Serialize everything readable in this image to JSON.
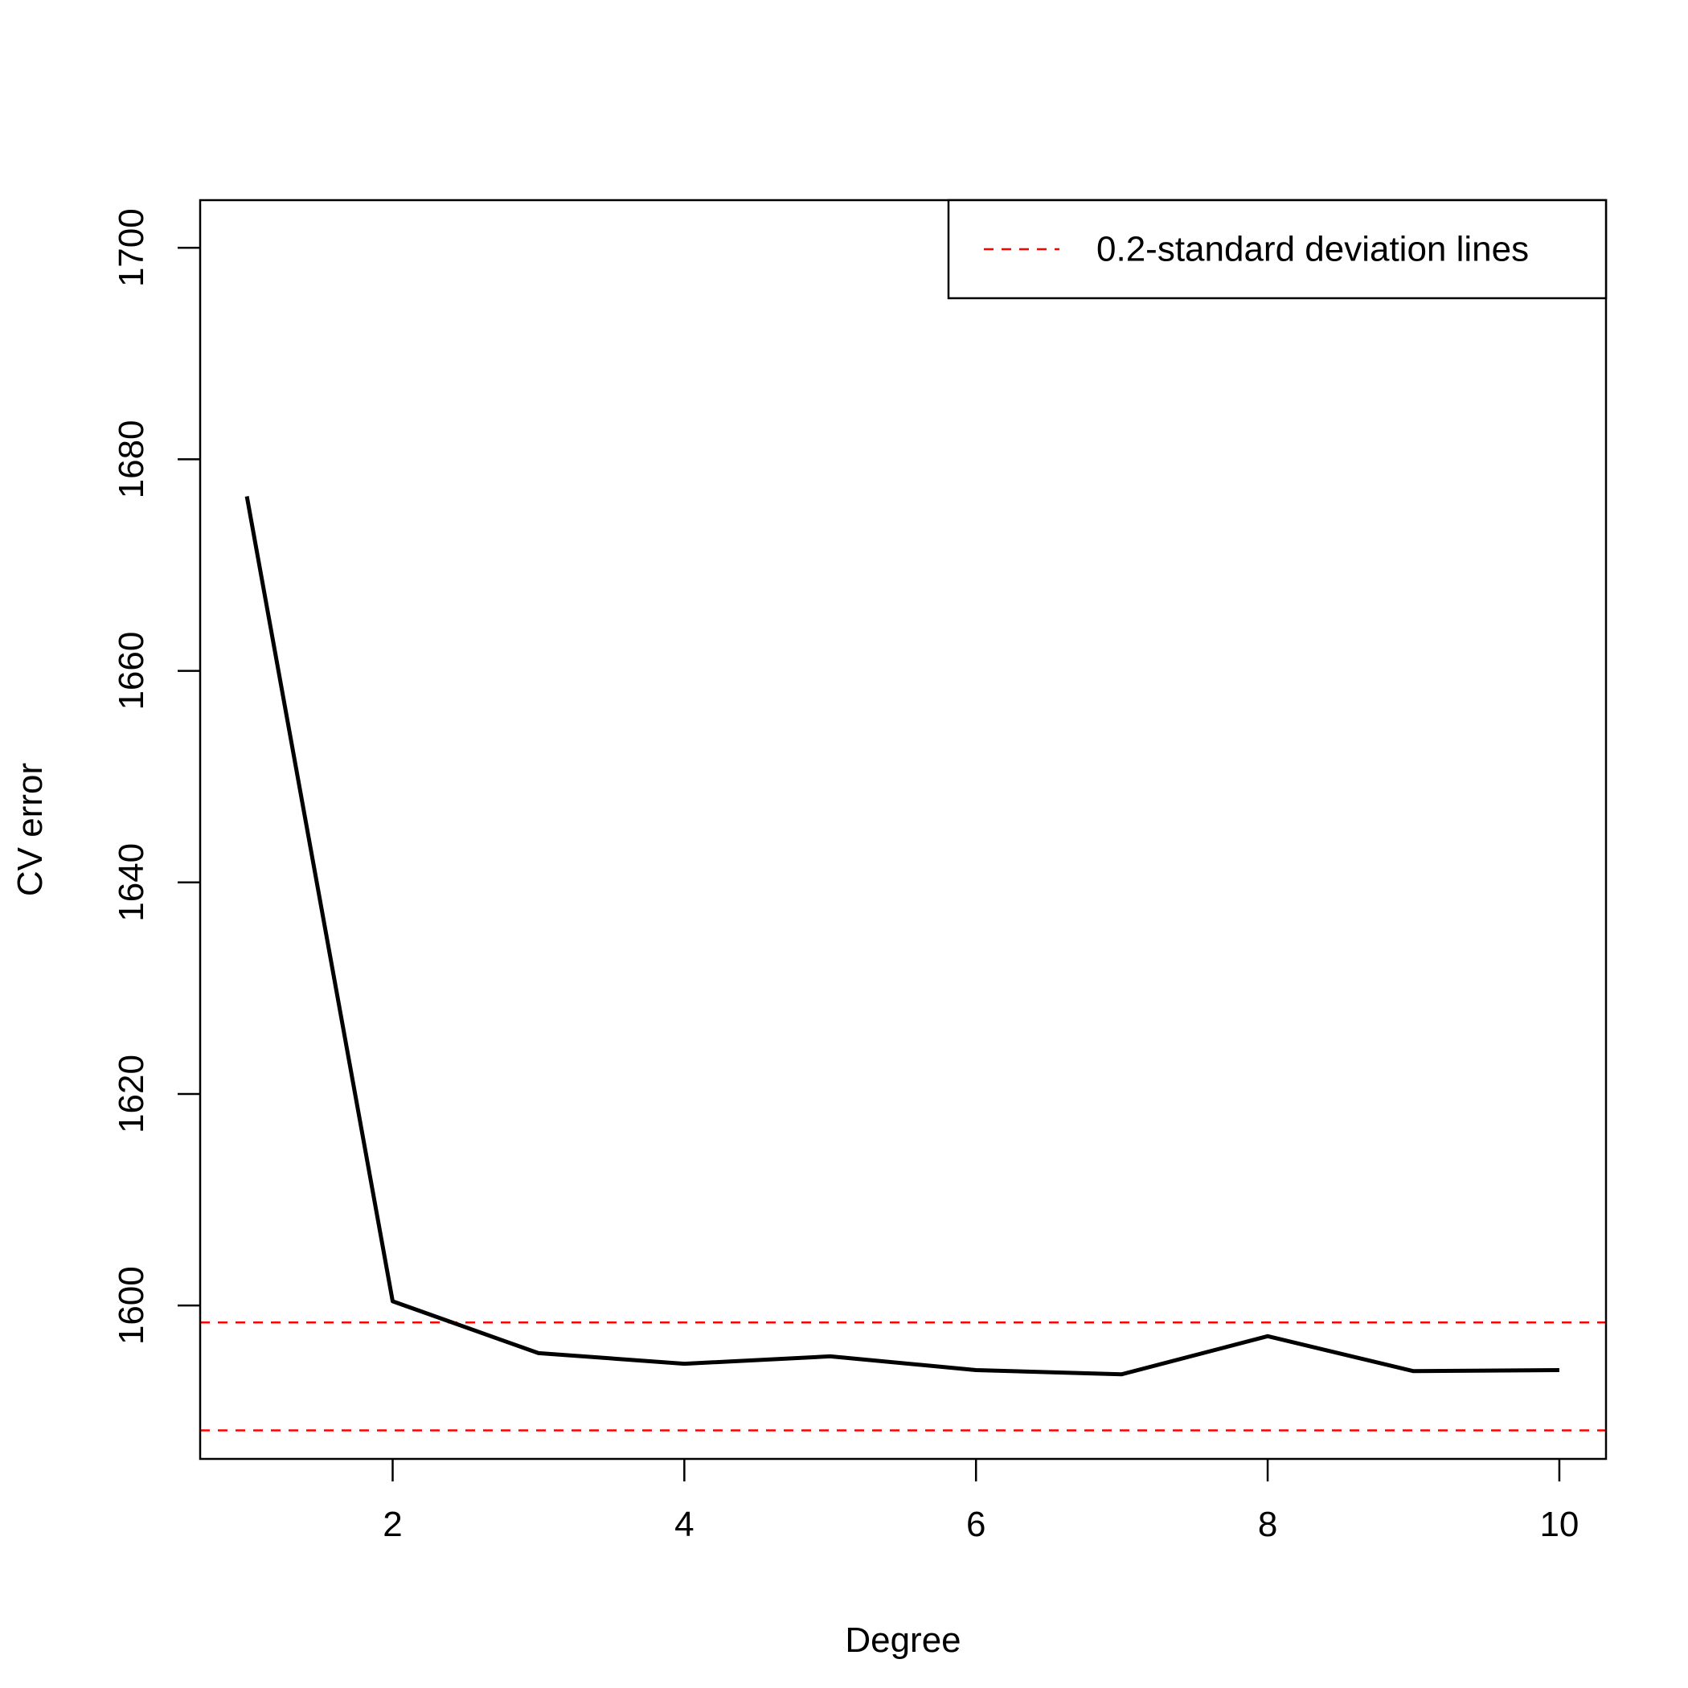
{
  "chart_data": {
    "type": "line",
    "title": "",
    "xlabel": "Degree",
    "ylabel": "CV error",
    "xlim": [
      0.68,
      10.32
    ],
    "ylim": [
      1585.5,
      1704.5
    ],
    "x_ticks": [
      2,
      4,
      6,
      8,
      10
    ],
    "y_ticks": [
      1600,
      1620,
      1640,
      1660,
      1680,
      1700
    ],
    "grid": false,
    "legend": {
      "position": "top-right",
      "entries": [
        {
          "label": "0.2-standard deviation lines",
          "color": "#FF0000",
          "style": "dashed"
        }
      ]
    },
    "series": [
      {
        "color": "#000000",
        "style": "solid",
        "x": [
          1,
          2,
          3,
          4,
          5,
          6,
          7,
          8,
          9,
          10
        ],
        "y": [
          1676.5,
          1600.4,
          1595.5,
          1594.5,
          1595.2,
          1593.9,
          1593.5,
          1597.1,
          1593.8,
          1593.9
        ]
      }
    ],
    "hlines": [
      {
        "y": 1598.4,
        "color": "#FF0000",
        "style": "dashed"
      },
      {
        "y": 1588.2,
        "color": "#FF0000",
        "style": "dashed"
      }
    ]
  }
}
